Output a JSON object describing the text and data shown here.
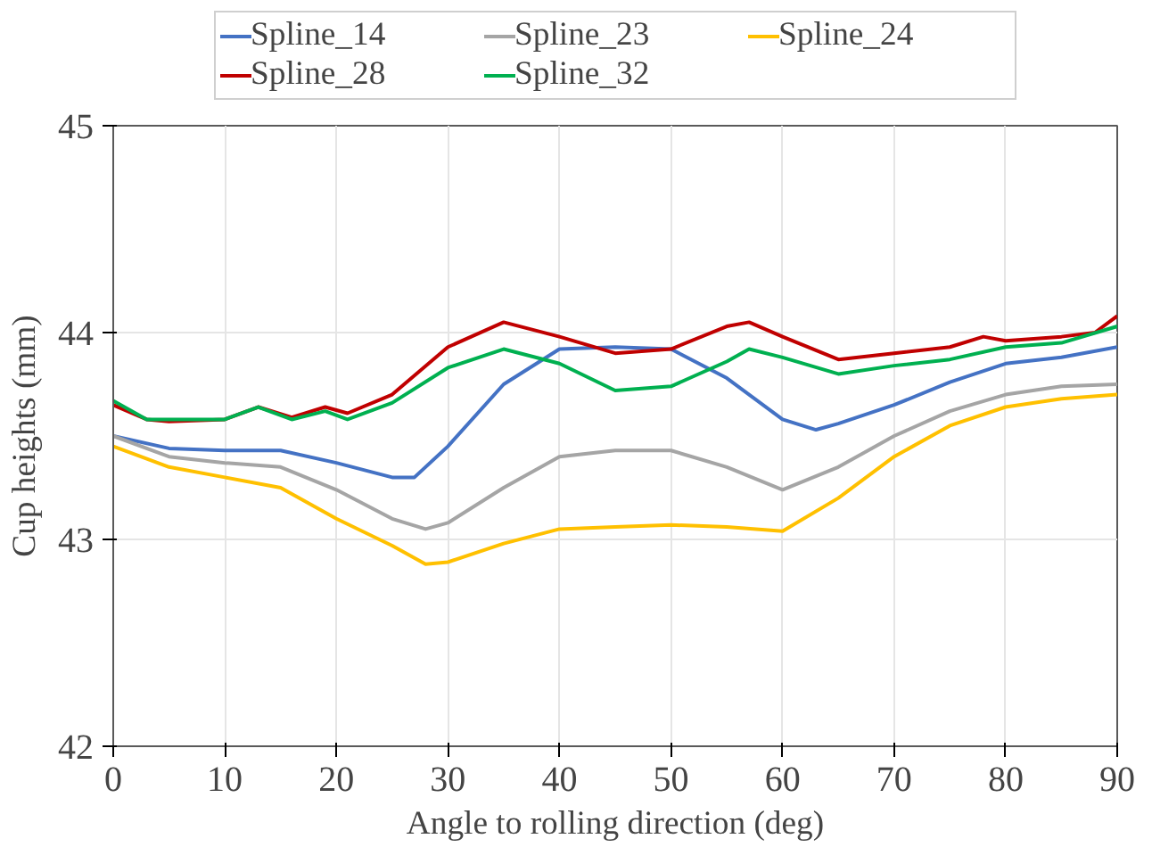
{
  "chart_data": {
    "type": "line",
    "xlabel": "Angle to rolling direction (deg)",
    "ylabel": "Cup heights (mm)",
    "xlim": [
      0,
      90
    ],
    "ylim": [
      42,
      45
    ],
    "xticks": [
      0,
      10,
      20,
      30,
      40,
      50,
      60,
      70,
      80,
      90
    ],
    "yticks": [
      42,
      43,
      44,
      45
    ],
    "grid": true,
    "legend": "top",
    "marker": "none",
    "line_style": "solid",
    "series": [
      {
        "name": "Spline_14",
        "color": "#4472c4",
        "x": [
          0,
          5,
          10,
          15,
          20,
          25,
          27,
          30,
          35,
          40,
          45,
          50,
          55,
          60,
          63,
          65,
          70,
          75,
          80,
          85,
          90
        ],
        "values": [
          43.5,
          43.44,
          43.43,
          43.43,
          43.37,
          43.3,
          43.3,
          43.45,
          43.75,
          43.92,
          43.93,
          43.92,
          43.78,
          43.58,
          43.53,
          43.56,
          43.65,
          43.76,
          43.85,
          43.88,
          43.93
        ]
      },
      {
        "name": "Spline_23",
        "color": "#a5a5a5",
        "x": [
          0,
          5,
          10,
          15,
          20,
          25,
          28,
          30,
          35,
          40,
          45,
          50,
          55,
          60,
          65,
          70,
          75,
          80,
          85,
          90
        ],
        "values": [
          43.5,
          43.4,
          43.37,
          43.35,
          43.24,
          43.1,
          43.05,
          43.08,
          43.25,
          43.4,
          43.43,
          43.43,
          43.35,
          43.24,
          43.35,
          43.5,
          43.62,
          43.7,
          43.74,
          43.75
        ]
      },
      {
        "name": "Spline_24",
        "color": "#ffc000",
        "x": [
          0,
          5,
          10,
          15,
          20,
          25,
          28,
          30,
          35,
          40,
          45,
          50,
          55,
          60,
          65,
          70,
          75,
          80,
          85,
          90
        ],
        "values": [
          43.45,
          43.35,
          43.3,
          43.25,
          43.1,
          42.97,
          42.88,
          42.89,
          42.98,
          43.05,
          43.06,
          43.07,
          43.06,
          43.04,
          43.2,
          43.4,
          43.55,
          43.64,
          43.68,
          43.7
        ]
      },
      {
        "name": "Spline_28",
        "color": "#c00000",
        "x": [
          0,
          3,
          5,
          10,
          13,
          16,
          19,
          21,
          25,
          30,
          35,
          40,
          45,
          50,
          55,
          57,
          60,
          65,
          70,
          75,
          78,
          80,
          85,
          88,
          90
        ],
        "values": [
          43.65,
          43.58,
          43.57,
          43.58,
          43.64,
          43.59,
          43.64,
          43.61,
          43.7,
          43.93,
          44.05,
          43.98,
          43.9,
          43.92,
          44.03,
          44.05,
          43.98,
          43.87,
          43.9,
          43.93,
          43.98,
          43.96,
          43.98,
          44.0,
          44.08
        ]
      },
      {
        "name": "Spline_32",
        "color": "#00b050",
        "x": [
          0,
          3,
          5,
          10,
          13,
          16,
          19,
          21,
          25,
          30,
          35,
          40,
          45,
          50,
          55,
          57,
          60,
          65,
          70,
          75,
          80,
          85,
          90
        ],
        "values": [
          43.67,
          43.58,
          43.58,
          43.58,
          43.64,
          43.58,
          43.62,
          43.58,
          43.66,
          43.83,
          43.92,
          43.85,
          43.72,
          43.74,
          43.86,
          43.92,
          43.88,
          43.8,
          43.84,
          43.87,
          43.93,
          43.95,
          44.03
        ]
      }
    ]
  }
}
